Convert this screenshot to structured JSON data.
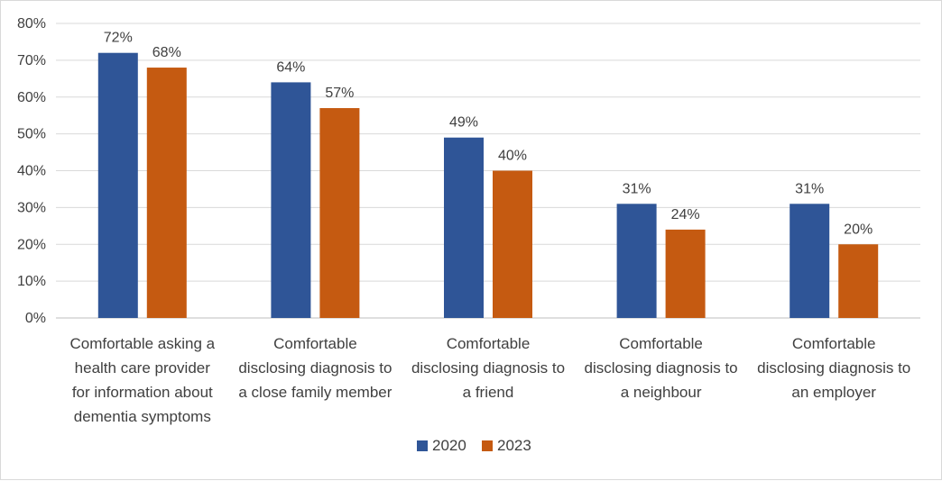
{
  "chart_data": {
    "type": "bar",
    "title": "",
    "xlabel": "",
    "ylabel": "",
    "ylim": [
      0,
      80
    ],
    "yticks": [
      0,
      10,
      20,
      30,
      40,
      50,
      60,
      70,
      80
    ],
    "ytick_labels": [
      "0%",
      "10%",
      "20%",
      "30%",
      "40%",
      "50%",
      "60%",
      "70%",
      "80%"
    ],
    "grid": true,
    "legend_position": "bottom-center",
    "categories": [
      [
        "Comfortable asking a",
        "health care provider",
        "for information about",
        "dementia symptoms"
      ],
      [
        "Comfortable",
        "disclosing diagnosis to",
        "a close family member"
      ],
      [
        "Comfortable",
        "disclosing diagnosis to",
        "a friend"
      ],
      [
        "Comfortable",
        "disclosing diagnosis to",
        "a neighbour"
      ],
      [
        "Comfortable",
        "disclosing diagnosis to",
        "an employer"
      ]
    ],
    "series": [
      {
        "name": "2020",
        "color": "#2f5597",
        "values": [
          72,
          64,
          49,
          31,
          31
        ],
        "labels": [
          "72%",
          "64%",
          "49%",
          "31%",
          "31%"
        ]
      },
      {
        "name": "2023",
        "color": "#c55a11",
        "values": [
          68,
          57,
          40,
          24,
          20
        ],
        "labels": [
          "68%",
          "57%",
          "40%",
          "24%",
          "20%"
        ]
      }
    ]
  }
}
